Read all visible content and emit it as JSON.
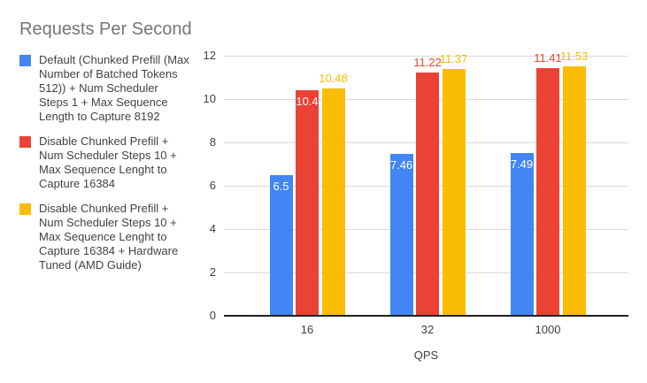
{
  "title": "Requests Per Second",
  "colors": {
    "blue": "#4285F4",
    "red": "#EA4335",
    "yellow": "#FBBC04",
    "title_gray": "#757575",
    "text_dark": "#424242",
    "gridline": "#d9d9d9",
    "axis_line": "#212121",
    "inside_label": "#ffffff"
  },
  "legend": {
    "items": [
      {
        "icon": "legend-swatch-blue",
        "color": "#4285F4",
        "label": "Default (Chunked Prefill (Max\nNumber of Batched Tokens\n512)) + Num Scheduler\nSteps 1 + Max Sequence\nLength to Capture 8192"
      },
      {
        "icon": "legend-swatch-red",
        "color": "#EA4335",
        "label": "Disable Chunked Prefill +\nNum Scheduler Steps 10 +\nMax Sequence Lenght to\nCapture 16384"
      },
      {
        "icon": "legend-swatch-yellow",
        "color": "#FBBC04",
        "label": "Disable Chunked Prefill +\nNum Scheduler Steps 10 +\nMax Sequence Lenght to\nCapture 16384 + Hardware\nTuned (AMD Guide)"
      }
    ]
  },
  "chart_data": {
    "type": "bar",
    "title": "Requests Per Second",
    "xlabel": "QPS",
    "ylabel": "",
    "categories": [
      "16",
      "32",
      "1000"
    ],
    "ylim": [
      0,
      12
    ],
    "yticks": [
      0,
      2,
      4,
      6,
      8,
      10,
      12
    ],
    "grid": true,
    "legend_position": "left",
    "series": [
      {
        "name": "Default (Chunked Prefill (Max Number of Batched Tokens 512)) + Num Scheduler Steps 1 + Max Sequence Length to Capture 8192",
        "color": "#4285F4",
        "values": [
          6.5,
          7.46,
          7.49
        ],
        "labels": [
          "6.5",
          "7.46",
          "7.49"
        ],
        "label_placement": [
          "inside",
          "inside",
          "inside"
        ]
      },
      {
        "name": "Disable Chunked Prefill + Num Scheduler Steps 10 + Max Sequence Lenght to Capture 16384",
        "color": "#EA4335",
        "values": [
          10.4,
          11.22,
          11.41
        ],
        "labels": [
          "10.4",
          "11.22",
          "11.41"
        ],
        "label_placement": [
          "inside",
          "above",
          "above"
        ]
      },
      {
        "name": "Disable Chunked Prefill + Num Scheduler Steps 10 + Max Sequence Lenght to Capture 16384 + Hardware Tuned (AMD Guide)",
        "color": "#FBBC04",
        "values": [
          10.48,
          11.37,
          11.53
        ],
        "labels": [
          "10.48",
          "11.37",
          "11.53"
        ],
        "label_placement": [
          "above",
          "above",
          "above"
        ]
      }
    ]
  }
}
